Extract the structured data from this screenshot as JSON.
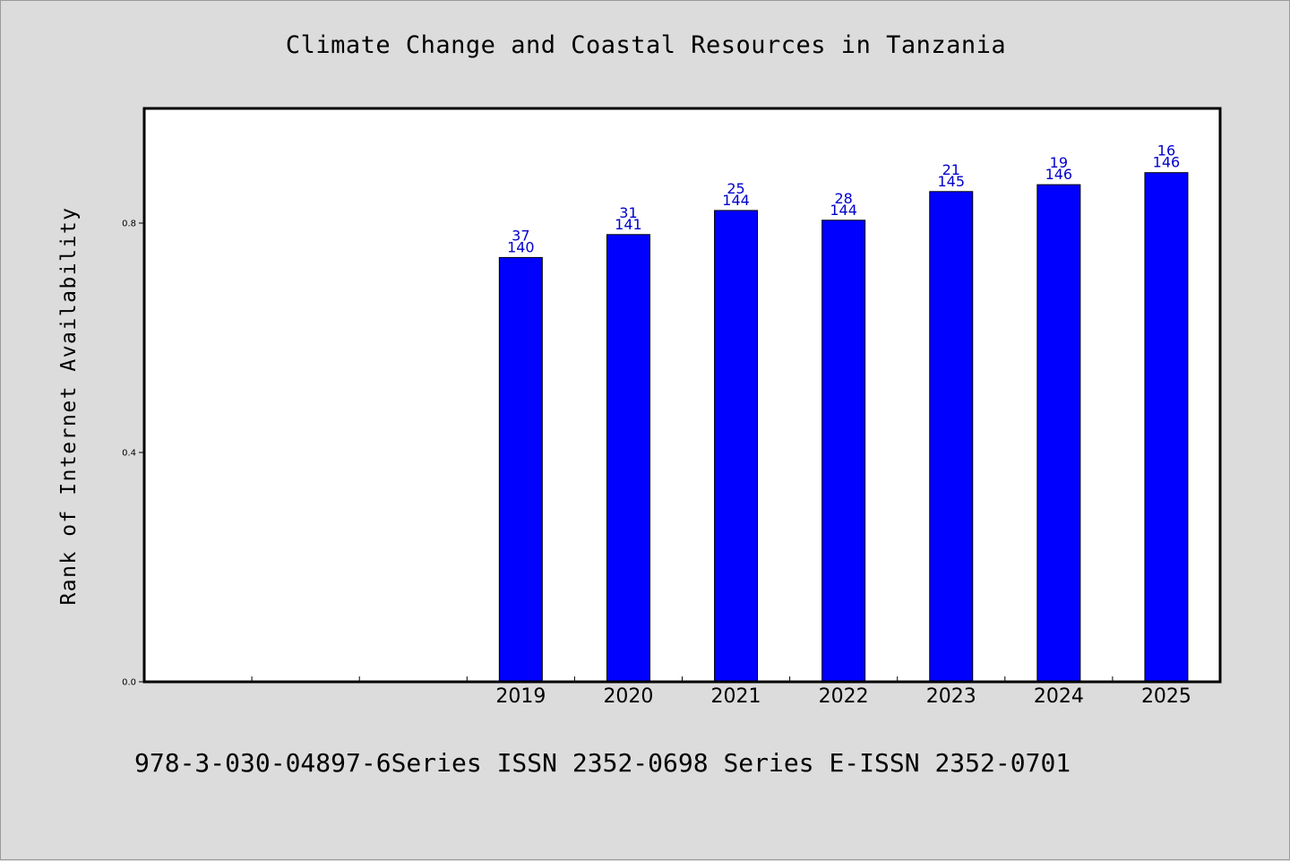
{
  "chart_data": {
    "type": "bar",
    "title": "Climate Change and Coastal Resources in Tanzania",
    "xlabel": "",
    "ylabel": "Rank of Internet Availability",
    "categories": [
      "",
      "",
      "",
      "2019",
      "2020",
      "2021",
      "2022",
      "2023",
      "2024",
      "2025"
    ],
    "values": [
      null,
      null,
      null,
      0.74,
      0.78,
      0.822,
      0.805,
      0.855,
      0.867,
      0.888
    ],
    "data_labels": [
      null,
      null,
      null,
      [
        "37",
        "140"
      ],
      [
        "31",
        "141"
      ],
      [
        "25",
        "144"
      ],
      [
        "28",
        "144"
      ],
      [
        "21",
        "145"
      ],
      [
        "19",
        "146"
      ],
      [
        "16",
        "146"
      ]
    ],
    "y_ticks": [
      0.0,
      0.4,
      0.8
    ],
    "y_tick_labels": [
      "0.0",
      "0.4",
      "0.8"
    ],
    "ylim": [
      0,
      1.0
    ],
    "grid": false,
    "legend": "none",
    "colors": {
      "bar_fill": "#0000ff",
      "data_label": "#0000cc",
      "background": "#dcdcdc",
      "plot_background": "#ffffff"
    }
  },
  "footer": {
    "text": "978-3-030-04897-6Series ISSN 2352-0698 Series E-ISSN 2352-0701"
  }
}
